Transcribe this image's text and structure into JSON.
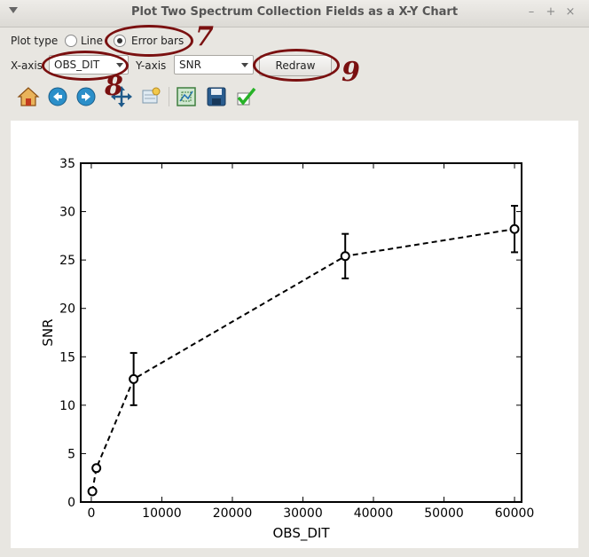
{
  "window": {
    "title": "Plot Two Spectrum Collection Fields as a X-Y Chart",
    "minimize_glyph": "–",
    "maximize_glyph": "+",
    "close_glyph": "×"
  },
  "controls": {
    "plot_type_label": "Plot type",
    "line_label": "Line",
    "error_bars_label": "Error bars",
    "selected_plot_type": "Error bars",
    "xaxis_label": "X-axis",
    "xaxis_value": "OBS_DIT",
    "yaxis_label": "Y-axis",
    "yaxis_value": "SNR",
    "redraw_label": "Redraw"
  },
  "toolbar": {
    "icons": [
      "home-icon",
      "back-icon",
      "forward-icon",
      "pan-icon",
      "zoom-icon",
      "subplots-icon",
      "save-icon",
      "check-icon"
    ]
  },
  "annotations": {
    "seven": "7",
    "eight": "8",
    "nine": "9",
    "color": "#7a1010"
  },
  "chart_data": {
    "type": "line",
    "xlabel": "OBS_DIT",
    "ylabel": "SNR",
    "xlim": [
      -1500,
      61000
    ],
    "ylim": [
      0,
      35
    ],
    "xticks": [
      0,
      10000,
      20000,
      30000,
      40000,
      50000,
      60000
    ],
    "yticks": [
      0,
      5,
      10,
      15,
      20,
      25,
      30,
      35
    ],
    "line_style": "dashed",
    "marker": "open-circle",
    "series": [
      {
        "x": [
          150,
          720,
          6000,
          36000,
          60000
        ],
        "y": [
          1.1,
          3.5,
          12.7,
          25.4,
          28.2
        ],
        "yerr": [
          0.0,
          0.0,
          2.7,
          2.3,
          2.4
        ]
      }
    ]
  }
}
